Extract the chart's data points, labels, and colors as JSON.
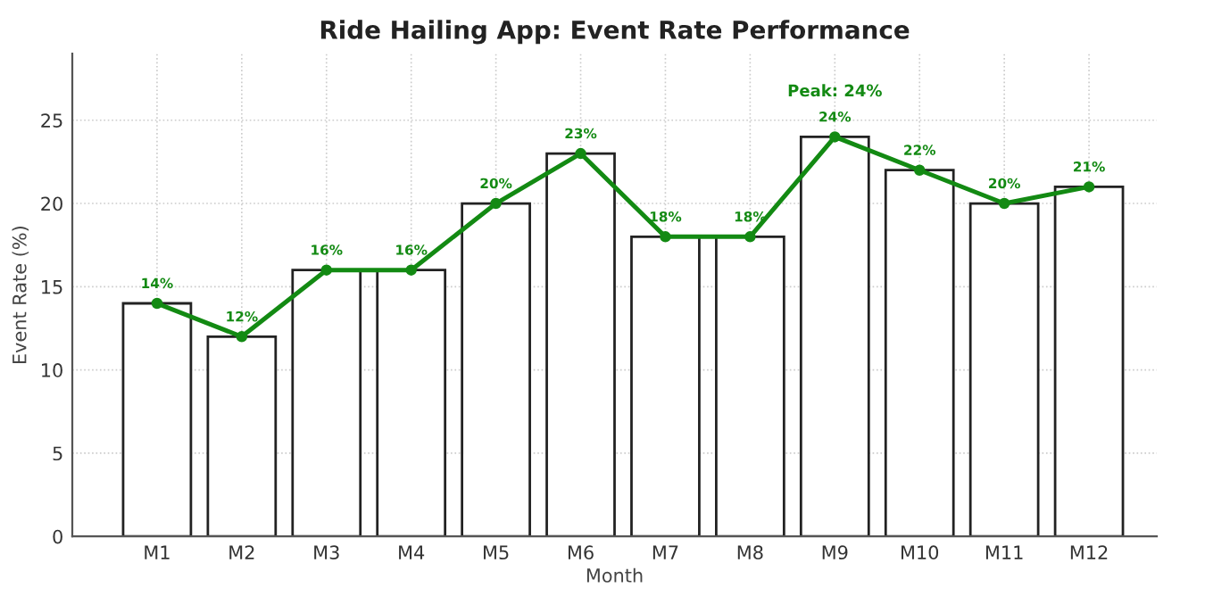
{
  "chart_data": {
    "type": "bar",
    "title": "Ride Hailing App: Event Rate Performance",
    "xlabel": "Month",
    "ylabel": "Event Rate (%)",
    "categories": [
      "M1",
      "M2",
      "M3",
      "M4",
      "M5",
      "M6",
      "M7",
      "M8",
      "M9",
      "M10",
      "M11",
      "M12"
    ],
    "series": [
      {
        "color": "#ffffff",
        "values": [
          14,
          12,
          16,
          16,
          20,
          23,
          18,
          18,
          24,
          22,
          20,
          21
        ]
      },
      {
        "type": "line",
        "color": "#138a13",
        "values": [
          14,
          12,
          16,
          16,
          20,
          23,
          18,
          18,
          24,
          22,
          20,
          21
        ],
        "value_labels": [
          "14%",
          "12%",
          "16%",
          "16%",
          "20%",
          "23%",
          "18%",
          "18%",
          "24%",
          "22%",
          "20%",
          "21%"
        ]
      }
    ],
    "annotations": [
      {
        "text": "Peak: 24%",
        "x": "M9",
        "y": 24
      }
    ],
    "ylim": [
      0,
      29
    ],
    "yticks": [
      0,
      5,
      10,
      15,
      20,
      25
    ],
    "grid": true,
    "marker": "circle",
    "line_style": "solid"
  }
}
